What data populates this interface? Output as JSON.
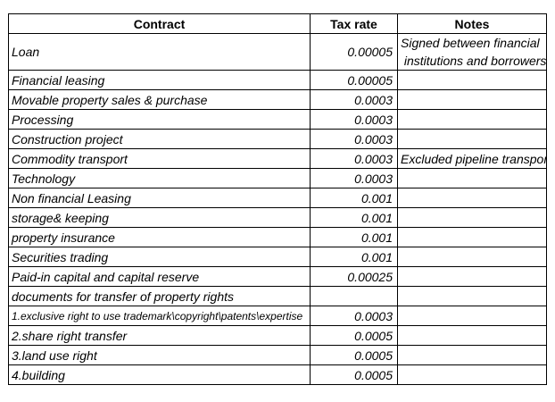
{
  "table": {
    "headers": [
      "Contract",
      "Tax rate",
      "Notes"
    ],
    "rows": [
      {
        "contract": "Loan",
        "tax_rate": "0.00005",
        "notes": "Signed between financial\n institutions and borrowers"
      },
      {
        "contract": "Financial leasing",
        "tax_rate": "0.00005",
        "notes": ""
      },
      {
        "contract": "Movable property sales & purchase",
        "tax_rate": "0.0003",
        "notes": ""
      },
      {
        "contract": "Processing",
        "tax_rate": "0.0003",
        "notes": ""
      },
      {
        "contract": "Construction project",
        "tax_rate": "0.0003",
        "notes": ""
      },
      {
        "contract": "Commodity transport",
        "tax_rate": "0.0003",
        "notes": "Excluded pipeline transport"
      },
      {
        "contract": "Technology",
        "tax_rate": "0.0003",
        "notes": ""
      },
      {
        "contract": "Non financial Leasing",
        "tax_rate": "0.001",
        "notes": ""
      },
      {
        "contract": "storage& keeping",
        "tax_rate": "0.001",
        "notes": ""
      },
      {
        "contract": "property insurance",
        "tax_rate": "0.001",
        "notes": ""
      },
      {
        "contract": "Securities trading",
        "tax_rate": "0.001",
        "notes": ""
      },
      {
        "contract": "Paid-in capital and capital reserve",
        "tax_rate": "0.00025",
        "notes": ""
      },
      {
        "contract": "documents for transfer of property rights",
        "tax_rate": "",
        "notes": ""
      },
      {
        "contract": "1.exclusive right to use trademark\\copyright\\patents\\expertise",
        "tax_rate": "0.0003",
        "notes": ""
      },
      {
        "contract": "2.share right transfer",
        "tax_rate": "0.0005",
        "notes": ""
      },
      {
        "contract": "3.land use right",
        "tax_rate": "0.0005",
        "notes": ""
      },
      {
        "contract": "4.building",
        "tax_rate": "0.0005",
        "notes": ""
      }
    ]
  },
  "colors": {
    "border": "#000000",
    "text": "#000000",
    "background": "#ffffff"
  }
}
